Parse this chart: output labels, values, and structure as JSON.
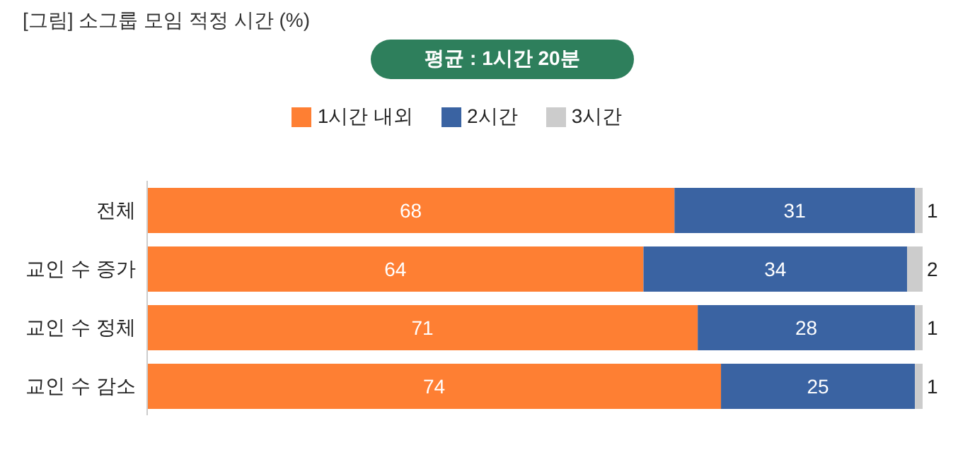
{
  "chart_data": {
    "type": "bar",
    "orientation": "horizontal",
    "stacked": true,
    "title": "[그림] 소그룹 모임 적정 시간 (%)",
    "annotations": [
      "평균 : 1시간 20분"
    ],
    "categories": [
      "전체",
      "교인 수 증가",
      "교인 수 정체",
      "교인 수 감소"
    ],
    "series": [
      {
        "name": "1시간 내외",
        "color": "#fe7f33",
        "values": [
          68,
          64,
          71,
          74
        ]
      },
      {
        "name": "2시간",
        "color": "#3a63a2",
        "values": [
          31,
          34,
          28,
          25
        ]
      },
      {
        "name": "3시간",
        "color": "#cccccc",
        "values": [
          1,
          2,
          1,
          1
        ]
      }
    ],
    "data_labels": true,
    "legend": "top",
    "grid": false
  }
}
